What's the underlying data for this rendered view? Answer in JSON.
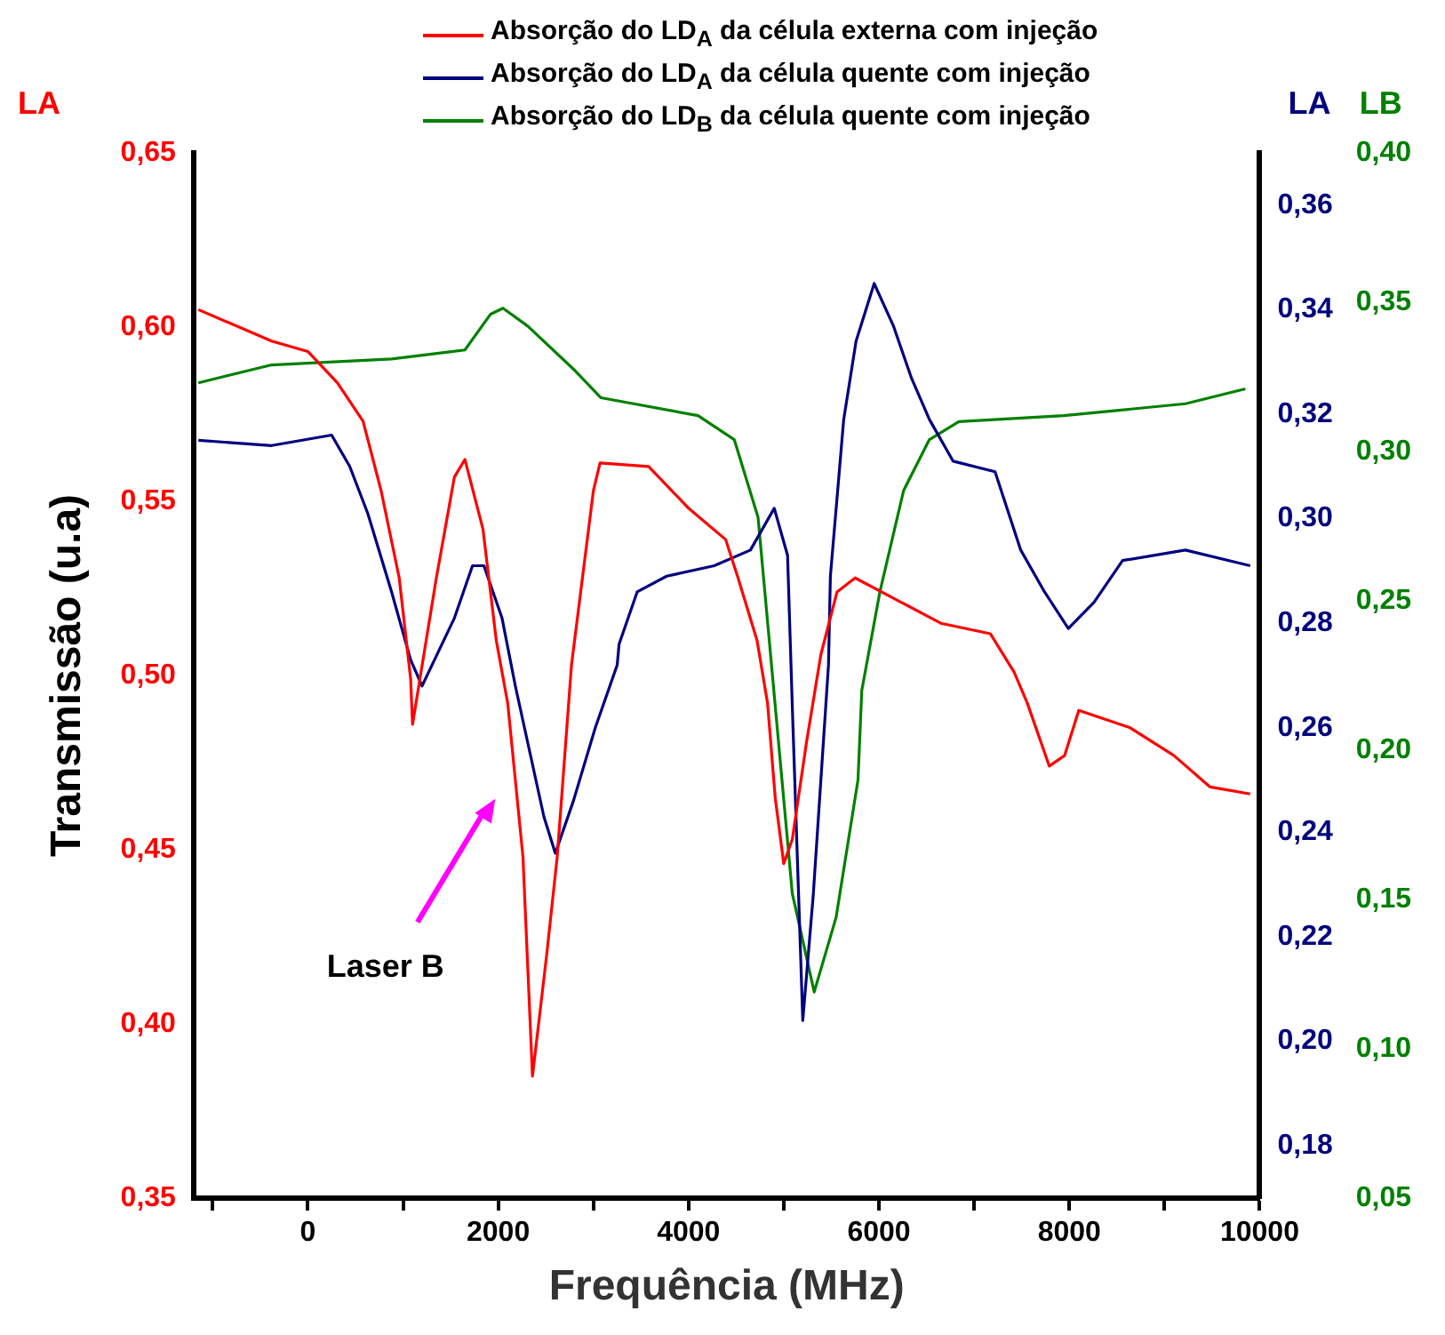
{
  "chart_data": {
    "type": "line",
    "xlabel": "Frequência (MHz)",
    "ylabel": "Transmissão (u.a)",
    "y2label": "LA",
    "y3label": "LB",
    "legend": "top",
    "grid": false,
    "marker": "none",
    "line_style": "solid",
    "annotations": [
      "LA",
      "Laser B"
    ],
    "xlim": [
      -1200,
      10000
    ],
    "xticks": [
      {
        "value": -1000,
        "label": null
      },
      0,
      {
        "value": 1000,
        "label": null
      },
      2000,
      {
        "value": 3000,
        "label": null
      },
      4000,
      {
        "value": 5000,
        "label": null
      },
      6000,
      {
        "value": 7000,
        "label": null
      },
      8000,
      {
        "value": 9000,
        "label": null
      },
      10000
    ],
    "ylim": [
      0.35,
      0.65
    ],
    "yticks": [
      {
        "value": 0.35,
        "label": "0,35"
      },
      {
        "value": 0.4,
        "label": "0,40"
      },
      {
        "value": 0.45,
        "label": "0,45"
      },
      {
        "value": 0.5,
        "label": "0,50"
      },
      {
        "value": 0.55,
        "label": "0,55"
      },
      {
        "value": 0.6,
        "label": "0,60"
      },
      {
        "value": 0.65,
        "label": "0,65"
      }
    ],
    "y2lim": [
      0.17,
      0.37
    ],
    "y2ticks": [
      {
        "value": 0.18,
        "label": "0,18"
      },
      {
        "value": 0.2,
        "label": "0,20"
      },
      {
        "value": 0.22,
        "label": "0,22"
      },
      {
        "value": 0.24,
        "label": "0,24"
      },
      {
        "value": 0.26,
        "label": "0,26"
      },
      {
        "value": 0.28,
        "label": "0,28"
      },
      {
        "value": 0.3,
        "label": "0,30"
      },
      {
        "value": 0.32,
        "label": "0,32"
      },
      {
        "value": 0.34,
        "label": "0,34"
      },
      {
        "value": 0.36,
        "label": "0,36"
      }
    ],
    "y3lim": [
      0.05,
      0.4
    ],
    "y3ticks": [
      {
        "value": 0.05,
        "label": "0,05"
      },
      {
        "value": 0.1,
        "label": "0,10"
      },
      {
        "value": 0.15,
        "label": "0,15"
      },
      {
        "value": 0.2,
        "label": "0,20"
      },
      {
        "value": 0.25,
        "label": "0,25"
      },
      {
        "value": 0.3,
        "label": "0,30"
      },
      {
        "value": 0.35,
        "label": "0,35"
      },
      {
        "value": 0.4,
        "label": "0,40"
      }
    ],
    "series": [
      {
        "name": "Absorção do LD$_{A}$ da célula externa com injeção",
        "color": "#ff0000",
        "x": [
          -1150,
          -380,
          0,
          310,
          580,
          770,
          960,
          1080,
          1100,
          1350,
          1540,
          1650,
          1840,
          1980,
          2100,
          2260,
          2360,
          2510,
          2620,
          2770,
          3000,
          3070,
          3580,
          4000,
          4390,
          4520,
          4720,
          4830,
          4910,
          5000,
          5090,
          5240,
          5390,
          5560,
          5750,
          6650,
          7170,
          7420,
          7560,
          7790,
          7950,
          8100,
          8640,
          9100,
          9480,
          9900
        ],
        "values": [
          0.605,
          0.596,
          0.593,
          0.584,
          0.573,
          0.553,
          0.528,
          0.499,
          0.486,
          0.528,
          0.557,
          0.562,
          0.542,
          0.51,
          0.492,
          0.448,
          0.385,
          0.42,
          0.448,
          0.503,
          0.553,
          0.561,
          0.56,
          0.548,
          0.539,
          0.528,
          0.51,
          0.492,
          0.465,
          0.446,
          0.453,
          0.481,
          0.506,
          0.524,
          0.528,
          0.515,
          0.512,
          0.501,
          0.492,
          0.474,
          0.477,
          0.49,
          0.485,
          0.477,
          0.468,
          0.466
        ]
      },
      {
        "name": "Absorção do LD$_{A}$ da célula quente com injeção",
        "color": "#000080",
        "axis": "y2",
        "x": [
          -1150,
          -380,
          250,
          440,
          630,
          880,
          1080,
          1200,
          1540,
          1730,
          1850,
          2040,
          2180,
          2480,
          2600,
          2790,
          3020,
          3250,
          3270,
          3460,
          3770,
          4270,
          4650,
          4900,
          5040,
          5090,
          5200,
          5310,
          5470,
          5490,
          5630,
          5760,
          5950,
          6150,
          6340,
          6530,
          6780,
          7220,
          7490,
          7740,
          7990,
          8260,
          8560,
          9220,
          9900
        ],
        "values": [
          0.315,
          0.314,
          0.316,
          0.31,
          0.301,
          0.286,
          0.273,
          0.268,
          0.281,
          0.291,
          0.291,
          0.281,
          0.268,
          0.243,
          0.236,
          0.246,
          0.26,
          0.272,
          0.276,
          0.286,
          0.289,
          0.291,
          0.294,
          0.302,
          0.293,
          0.264,
          0.204,
          0.228,
          0.272,
          0.289,
          0.319,
          0.334,
          0.345,
          0.337,
          0.327,
          0.319,
          0.311,
          0.309,
          0.294,
          0.286,
          0.279,
          0.284,
          0.292,
          0.294,
          0.291
        ]
      },
      {
        "name": "Absorção do LD$_{B}$ da célula quente com injeção",
        "color": "#008000",
        "axis": "y3",
        "x": [
          -1150,
          -380,
          880,
          1650,
          1920,
          2050,
          2310,
          2810,
          3080,
          4100,
          4480,
          4730,
          4910,
          5090,
          5320,
          5550,
          5780,
          5820,
          6010,
          6260,
          6530,
          6840,
          7940,
          9220,
          9850
        ],
        "values": [
          0.323,
          0.329,
          0.331,
          0.334,
          0.346,
          0.348,
          0.342,
          0.327,
          0.318,
          0.312,
          0.304,
          0.278,
          0.215,
          0.152,
          0.119,
          0.144,
          0.19,
          0.22,
          0.253,
          0.287,
          0.304,
          0.31,
          0.312,
          0.316,
          0.321
        ]
      }
    ]
  }
}
